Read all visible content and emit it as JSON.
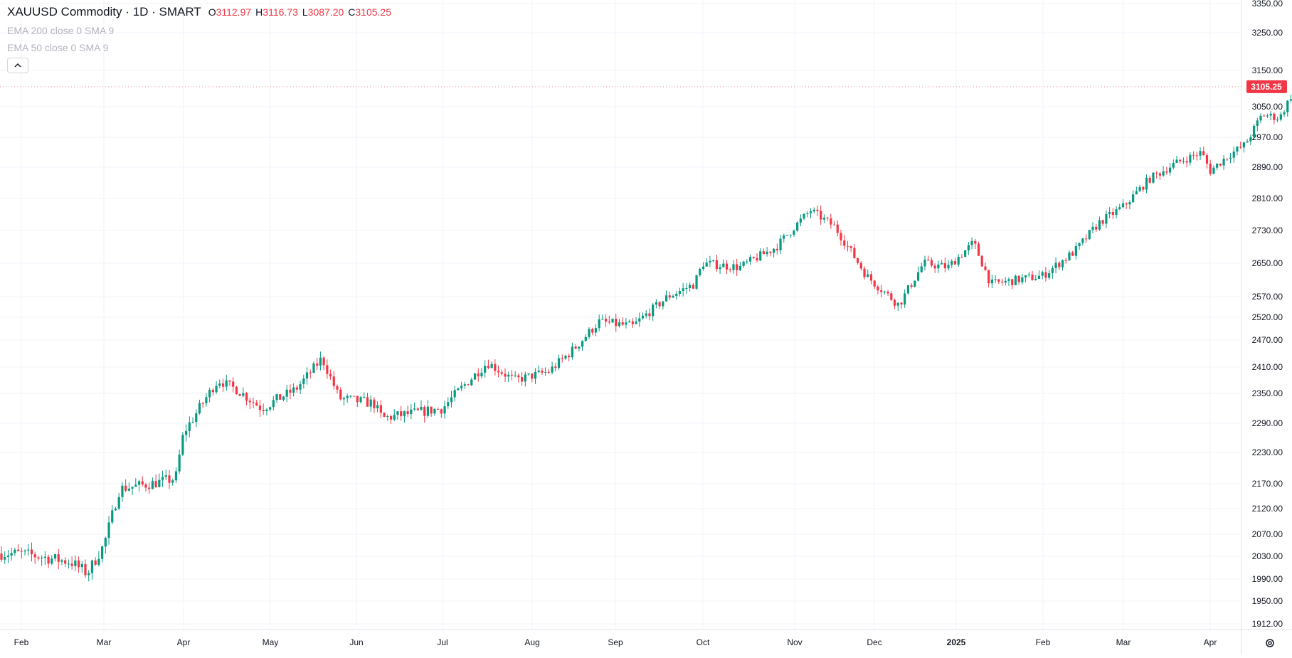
{
  "legend": {
    "symbol": "XAUUSD Commodity · 1D · SMART",
    "ohlc": [
      {
        "key": "O",
        "value": "3112.97"
      },
      {
        "key": "H",
        "value": "3116.73"
      },
      {
        "key": "L",
        "value": "3087.20"
      },
      {
        "key": "C",
        "value": "3105.25"
      }
    ],
    "indicators": [
      "EMA 200 close 0 SMA 9",
      "EMA 50 close 0 SMA 9"
    ]
  },
  "last_price_label": "3105.25",
  "colors": {
    "up": "#089981",
    "down": "#f23645",
    "grid": "#f0f3fa",
    "axis_text": "#131722",
    "price_tag": "#f23645"
  },
  "chart_data": {
    "type": "candlestick",
    "y_ticks": [
      "3350.00",
      "3250.00",
      "3150.00",
      "3050.00",
      "2970.00",
      "2890.00",
      "2810.00",
      "2730.00",
      "2650.00",
      "2570.00",
      "2520.00",
      "2470.00",
      "2410.00",
      "2350.00",
      "2290.00",
      "2230.00",
      "2170.00",
      "2120.00",
      "2070.00",
      "2030.00",
      "1990.00",
      "1950.00",
      "1912.00"
    ],
    "x_labels": [
      {
        "label": "Feb",
        "bold": false
      },
      {
        "label": "Mar",
        "bold": false
      },
      {
        "label": "Apr",
        "bold": false
      },
      {
        "label": "May",
        "bold": false
      },
      {
        "label": "Jun",
        "bold": false
      },
      {
        "label": "Jul",
        "bold": false
      },
      {
        "label": "Aug",
        "bold": false
      },
      {
        "label": "Sep",
        "bold": false
      },
      {
        "label": "Oct",
        "bold": false
      },
      {
        "label": "Nov",
        "bold": false
      },
      {
        "label": "Dec",
        "bold": false
      },
      {
        "label": "2025",
        "bold": true
      },
      {
        "label": "Feb",
        "bold": false
      },
      {
        "label": "Mar",
        "bold": false
      },
      {
        "label": "Apr",
        "bold": false
      }
    ],
    "path_points": [
      {
        "month_index": 0,
        "price": 2035
      },
      {
        "month_index": 0.6,
        "price": 2020
      },
      {
        "month_index": 0.8,
        "price": 2000
      },
      {
        "month_index": 1,
        "price": 2050
      },
      {
        "month_index": 1.2,
        "price": 2160
      },
      {
        "month_index": 1.6,
        "price": 2170
      },
      {
        "month_index": 1.9,
        "price": 2180
      },
      {
        "month_index": 2,
        "price": 2270
      },
      {
        "month_index": 2.4,
        "price": 2380
      },
      {
        "month_index": 2.6,
        "price": 2360
      },
      {
        "month_index": 2.9,
        "price": 2320
      },
      {
        "month_index": 3,
        "price": 2330
      },
      {
        "month_index": 3.3,
        "price": 2360
      },
      {
        "month_index": 3.6,
        "price": 2430
      },
      {
        "month_index": 3.8,
        "price": 2340
      },
      {
        "month_index": 4.2,
        "price": 2330
      },
      {
        "month_index": 4.3,
        "price": 2300
      },
      {
        "month_index": 5,
        "price": 2320
      },
      {
        "month_index": 5.5,
        "price": 2420
      },
      {
        "month_index": 5.8,
        "price": 2380
      },
      {
        "month_index": 6.2,
        "price": 2400
      },
      {
        "month_index": 6.5,
        "price": 2450
      },
      {
        "month_index": 6.8,
        "price": 2510
      },
      {
        "month_index": 7.2,
        "price": 2500
      },
      {
        "month_index": 7.6,
        "price": 2570
      },
      {
        "month_index": 7.9,
        "price": 2600
      },
      {
        "month_index": 8,
        "price": 2650
      },
      {
        "month_index": 8.4,
        "price": 2640
      },
      {
        "month_index": 8.8,
        "price": 2690
      },
      {
        "month_index": 9,
        "price": 2740
      },
      {
        "month_index": 9.2,
        "price": 2780
      },
      {
        "month_index": 9.5,
        "price": 2740
      },
      {
        "month_index": 9.9,
        "price": 2620
      },
      {
        "month_index": 10.3,
        "price": 2550
      },
      {
        "month_index": 10.6,
        "price": 2650
      },
      {
        "month_index": 10.9,
        "price": 2640
      },
      {
        "month_index": 11.2,
        "price": 2700
      },
      {
        "month_index": 11.4,
        "price": 2600
      },
      {
        "month_index": 12,
        "price": 2620
      },
      {
        "month_index": 12.4,
        "price": 2680
      },
      {
        "month_index": 12.7,
        "price": 2750
      },
      {
        "month_index": 13,
        "price": 2790
      },
      {
        "month_index": 13.3,
        "price": 2860
      },
      {
        "month_index": 13.6,
        "price": 2900
      },
      {
        "month_index": 13.9,
        "price": 2930
      },
      {
        "month_index": 14,
        "price": 2880
      },
      {
        "month_index": 14.2,
        "price": 2920
      },
      {
        "month_index": 14.4,
        "price": 2950
      },
      {
        "month_index": 14.6,
        "price": 3030
      },
      {
        "month_index": 14.8,
        "price": 3020
      },
      {
        "month_index": 15,
        "price": 3110
      },
      {
        "month_index": 15.1,
        "price": 3105
      }
    ]
  }
}
